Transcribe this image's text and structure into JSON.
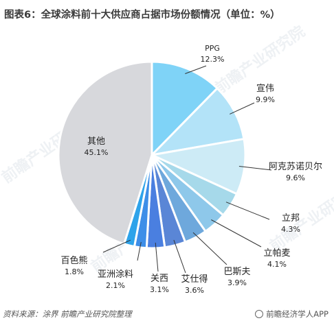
{
  "title": "图表6：全球涂料前十大供应商占据市场份额情况（单位：%）",
  "source": "资料来源：涂界 前瞻产业研究院整理",
  "app": "前瞻经济学人APP",
  "watermark": "前瞻产业研究院",
  "chart_data": {
    "type": "pie",
    "title": "图表6：全球涂料前十大供应商占据市场份额情况（单位：%）",
    "unit": "%",
    "slices": [
      {
        "name": "PPG",
        "value": 12.3,
        "label": "12.3%",
        "color": "#7fd3f7"
      },
      {
        "name": "宣伟",
        "value": 9.9,
        "label": "9.9%",
        "color": "#b3e3f8"
      },
      {
        "name": "阿克苏诺贝尔",
        "value": 9.6,
        "label": "9.6%",
        "color": "#cdebf6"
      },
      {
        "name": "立邦",
        "value": 4.3,
        "label": "4.3%",
        "color": "#a6d9ea"
      },
      {
        "name": "立帕麦",
        "value": 4.1,
        "label": "4.1%",
        "color": "#8ec8ea"
      },
      {
        "name": "巴斯夫",
        "value": 3.9,
        "label": "3.9%",
        "color": "#6ea8dc"
      },
      {
        "name": "艾仕得",
        "value": 3.6,
        "label": "3.6%",
        "color": "#5a86d6"
      },
      {
        "name": "关西",
        "value": 3.1,
        "label": "3.1%",
        "color": "#4a7fe0"
      },
      {
        "name": "亚洲涂料",
        "value": 2.1,
        "label": "2.1%",
        "color": "#3d8ee8"
      },
      {
        "name": "百色熊",
        "value": 1.8,
        "label": "1.8%",
        "color": "#2ea3ea"
      },
      {
        "name": "其他",
        "value": 45.1,
        "label": "45.1%",
        "color": "#d7d8dc"
      }
    ]
  }
}
